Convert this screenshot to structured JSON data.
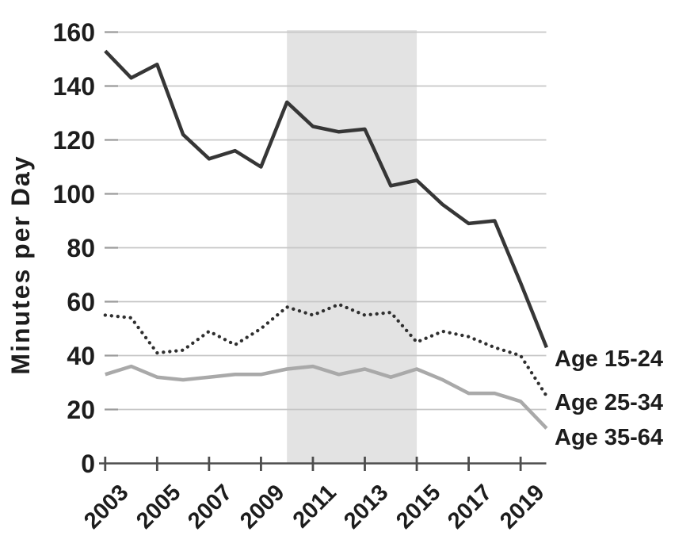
{
  "chart_data": {
    "type": "line",
    "title": "",
    "ylabel": "Minutes per Day",
    "xlabel": "",
    "x": [
      2003,
      2004,
      2005,
      2006,
      2007,
      2008,
      2009,
      2010,
      2011,
      2012,
      2013,
      2014,
      2015,
      2016,
      2017,
      2018,
      2019,
      2020
    ],
    "series": [
      {
        "name": "Age 15-24",
        "style": "solid",
        "color": "#363636",
        "values": [
          153,
          143,
          148,
          122,
          113,
          116,
          110,
          134,
          125,
          123,
          124,
          103,
          105,
          96,
          89,
          90,
          67,
          43
        ]
      },
      {
        "name": "Age 25-34",
        "style": "dotted",
        "color": "#2f2f2f",
        "values": [
          55,
          54,
          41,
          42,
          49,
          44,
          50,
          58,
          55,
          59,
          55,
          56,
          45,
          49,
          47,
          43,
          40,
          25
        ]
      },
      {
        "name": "Age 35-64",
        "style": "solid",
        "color": "#a9a9a9",
        "values": [
          33,
          36,
          32,
          31,
          32,
          33,
          33,
          35,
          36,
          33,
          35,
          32,
          35,
          31,
          26,
          26,
          23,
          13
        ]
      }
    ],
    "xticks": [
      2003,
      2005,
      2007,
      2009,
      2011,
      2013,
      2015,
      2017,
      2019
    ],
    "yticks": [
      0,
      20,
      40,
      60,
      80,
      100,
      120,
      140,
      160
    ],
    "ylim": [
      0,
      160
    ],
    "grid": "horizontal",
    "legend_position": "right-end-labels",
    "highlight_band": {
      "from": 2010,
      "to": 2015,
      "color": "#e3e3e3"
    }
  }
}
